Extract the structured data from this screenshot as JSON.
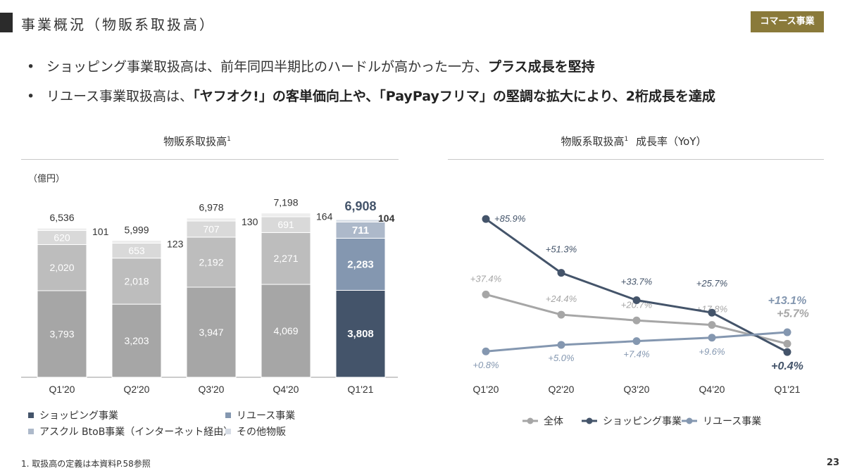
{
  "header": {
    "title": "事業概況（物販系取扱高）",
    "tag": "コマース事業"
  },
  "bullets": [
    {
      "plain": "ショッピング事業取扱高は、前年同四半期比のハードルが高かった一方、",
      "bold": "プラス成長を堅持",
      "tail": ""
    },
    {
      "plain": "リユース事業取扱高は、",
      "bold": "「ヤフオク!」の客単価向上や、「PayPayフリマ」の堅調な拡大により、2桁成長を達成",
      "tail": ""
    }
  ],
  "bullet_marker": "•",
  "left_chart_title": "物販系取扱高",
  "left_chart_title_sup": "1",
  "right_chart_title": "物販系取扱高",
  "right_chart_title_sup": "1",
  "right_chart_title_rest": "成長率（YoY）",
  "footnote": "1. 取扱高の定義は本資料P.58参照",
  "page_number": "23",
  "chart_data": [
    {
      "type": "bar",
      "stacked": true,
      "unit_label": "（億円）",
      "categories": [
        "Q1'20",
        "Q2'20",
        "Q3'20",
        "Q4'20",
        "Q1'21"
      ],
      "series": [
        {
          "name": "ショッピング事業",
          "values": [
            3793,
            3203,
            3947,
            4069,
            3808
          ],
          "labels": [
            "3,793",
            "3,203",
            "3,947",
            "4,069",
            "3,808"
          ]
        },
        {
          "name": "リユース事業",
          "values": [
            2020,
            2018,
            2192,
            2271,
            2283
          ],
          "labels": [
            "2,020",
            "2,018",
            "2,192",
            "2,271",
            "2,283"
          ]
        },
        {
          "name": "アスクル BtoB事業（インターネット経由）",
          "values": [
            620,
            653,
            707,
            691,
            711
          ],
          "labels": [
            "620",
            "653",
            "707",
            "691",
            "711"
          ]
        },
        {
          "name": "その他物販",
          "values": [
            101,
            123,
            130,
            164,
            104
          ],
          "labels": [
            "101",
            "123",
            "130",
            "164",
            "104"
          ]
        }
      ],
      "totals": [
        "6,536",
        "5,999",
        "6,978",
        "7,198",
        "6,908"
      ],
      "total_values": [
        6536,
        5999,
        6978,
        7198,
        6908
      ],
      "colors": {
        "shopping": "#a6a6a6",
        "reuse": "#bdbdbd",
        "askul": "#d9d9d9",
        "other": "#ededed",
        "shopping_highlight": "#44546a",
        "reuse_highlight": "#8497b0",
        "askul_highlight": "#adb9ca",
        "other_highlight": "#d6dce5"
      },
      "legend": [
        "ショッピング事業",
        "リユース事業",
        "アスクル BtoB事業（インターネット経由）",
        "その他物販"
      ],
      "legend_colors": [
        "#44546a",
        "#8497b0",
        "#adb9ca",
        "#d6dce5"
      ]
    },
    {
      "type": "line",
      "categories": [
        "Q1'20",
        "Q2'20",
        "Q3'20",
        "Q4'20",
        "Q1'21"
      ],
      "series": [
        {
          "name": "全体",
          "color": "#a6a6a6",
          "values": [
            37.4,
            24.4,
            20.7,
            17.8,
            5.7
          ],
          "labels": [
            "+37.4%",
            "+24.4%",
            "+20.7%",
            "+17.8%",
            "+5.7%"
          ]
        },
        {
          "name": "ショッピング事業",
          "color": "#44546a",
          "values": [
            85.9,
            51.3,
            33.7,
            25.7,
            0.4
          ],
          "labels": [
            "+85.9%",
            "+51.3%",
            "+33.7%",
            "+25.7%",
            "+0.4%"
          ]
        },
        {
          "name": "リユース事業",
          "color": "#8497b0",
          "values": [
            0.8,
            5.0,
            7.4,
            9.6,
            13.1
          ],
          "labels": [
            "+0.8%",
            "+5.0%",
            "+7.4%",
            "+9.6%",
            "+13.1%"
          ]
        }
      ]
    }
  ]
}
